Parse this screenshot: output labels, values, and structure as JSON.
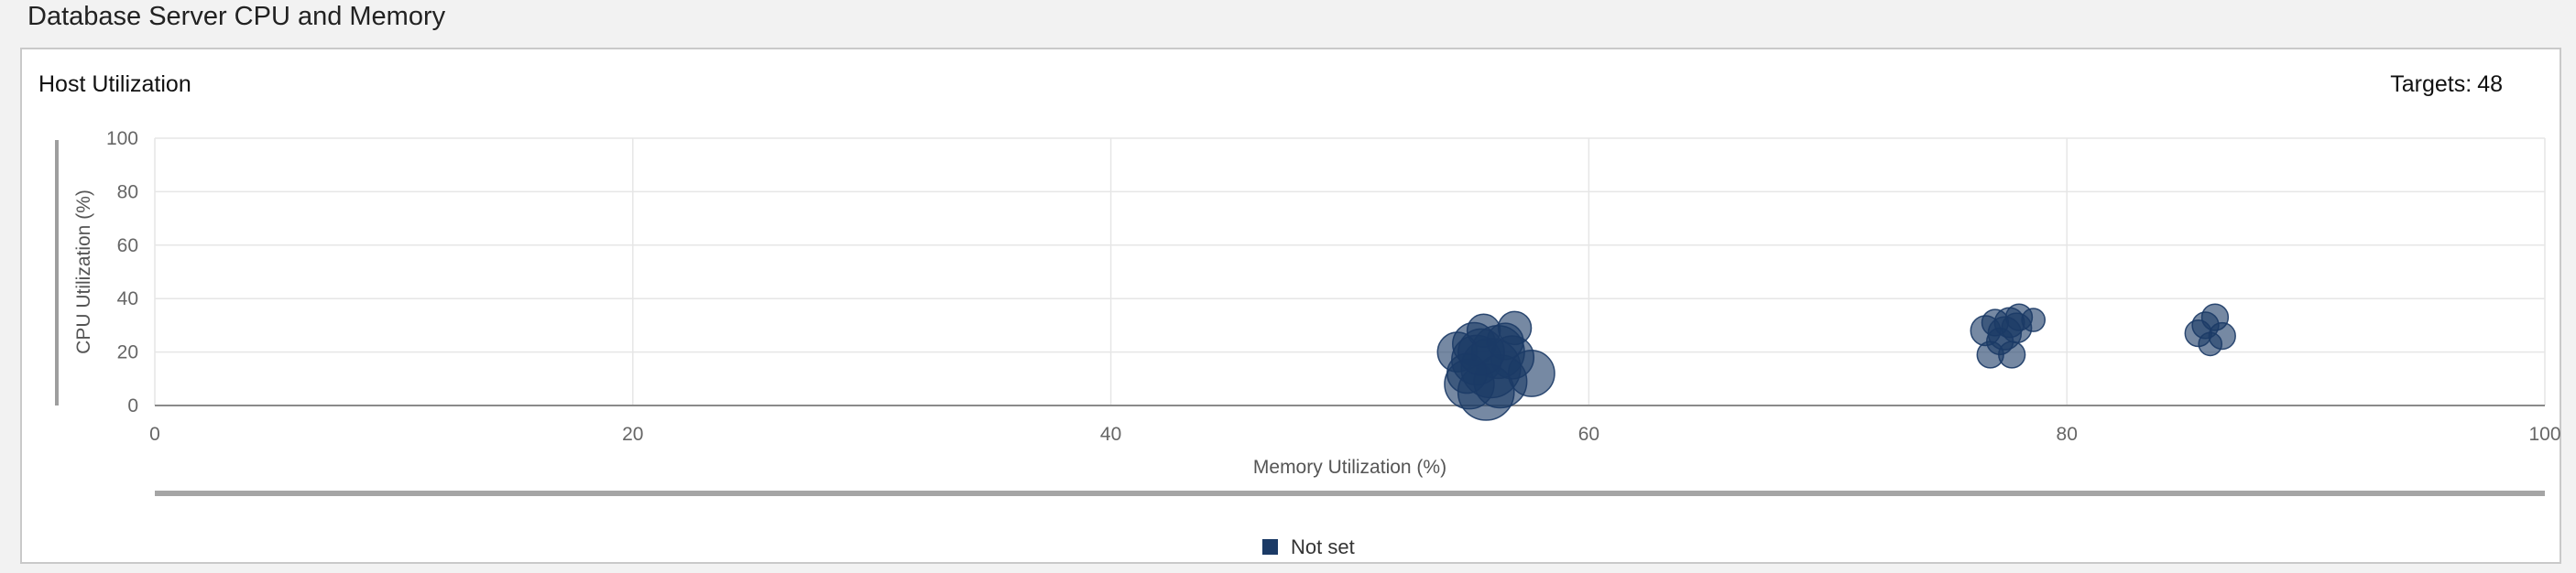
{
  "page": {
    "title": "Database Server CPU and Memory"
  },
  "panel": {
    "title": "Host Utilization",
    "targets_label": "Targets:",
    "targets_count": "48"
  },
  "chart_data": {
    "type": "scatter",
    "xlabel": "Memory Utilization (%)",
    "ylabel": "CPU Utilization (%)",
    "xlim": [
      0,
      100
    ],
    "ylim": [
      0,
      100
    ],
    "xticks": [
      0,
      20,
      40,
      60,
      80,
      100
    ],
    "yticks": [
      0,
      20,
      40,
      60,
      80,
      100
    ],
    "grid": true,
    "legend_position": "bottom-center",
    "marker_color": "#1b3a66",
    "series": [
      {
        "name": "Not set",
        "points": [
          {
            "x": 54.5,
            "y": 20,
            "size": 1.2
          },
          {
            "x": 55.2,
            "y": 23,
            "size": 1.3
          },
          {
            "x": 55.6,
            "y": 28,
            "size": 1.0
          },
          {
            "x": 56.9,
            "y": 29,
            "size": 1.0
          },
          {
            "x": 55.3,
            "y": 17,
            "size": 1.5
          },
          {
            "x": 56.2,
            "y": 20,
            "size": 1.6
          },
          {
            "x": 56.8,
            "y": 18,
            "size": 1.3
          },
          {
            "x": 55.9,
            "y": 14,
            "size": 1.8
          },
          {
            "x": 57.6,
            "y": 12,
            "size": 1.4
          },
          {
            "x": 55.0,
            "y": 8,
            "size": 1.5
          },
          {
            "x": 56.3,
            "y": 9,
            "size": 1.6
          },
          {
            "x": 55.7,
            "y": 5,
            "size": 1.7
          },
          {
            "x": 56.5,
            "y": 24,
            "size": 1.1
          },
          {
            "x": 54.9,
            "y": 12,
            "size": 1.2
          },
          {
            "x": 55.5,
            "y": 20,
            "size": 1.4
          },
          {
            "x": 76.6,
            "y": 28,
            "size": 0.9
          },
          {
            "x": 77.0,
            "y": 31,
            "size": 0.8
          },
          {
            "x": 77.4,
            "y": 27,
            "size": 1.0
          },
          {
            "x": 78.0,
            "y": 33,
            "size": 0.8
          },
          {
            "x": 78.6,
            "y": 32,
            "size": 0.7
          },
          {
            "x": 77.9,
            "y": 29,
            "size": 0.9
          },
          {
            "x": 76.8,
            "y": 19,
            "size": 0.8
          },
          {
            "x": 77.7,
            "y": 19,
            "size": 0.8
          },
          {
            "x": 77.2,
            "y": 24,
            "size": 0.8
          },
          {
            "x": 77.6,
            "y": 31,
            "size": 0.9
          },
          {
            "x": 85.5,
            "y": 27,
            "size": 0.8
          },
          {
            "x": 85.8,
            "y": 30,
            "size": 0.8
          },
          {
            "x": 86.2,
            "y": 33,
            "size": 0.8
          },
          {
            "x": 86.5,
            "y": 26,
            "size": 0.8
          },
          {
            "x": 86.0,
            "y": 23,
            "size": 0.7
          }
        ]
      }
    ]
  }
}
